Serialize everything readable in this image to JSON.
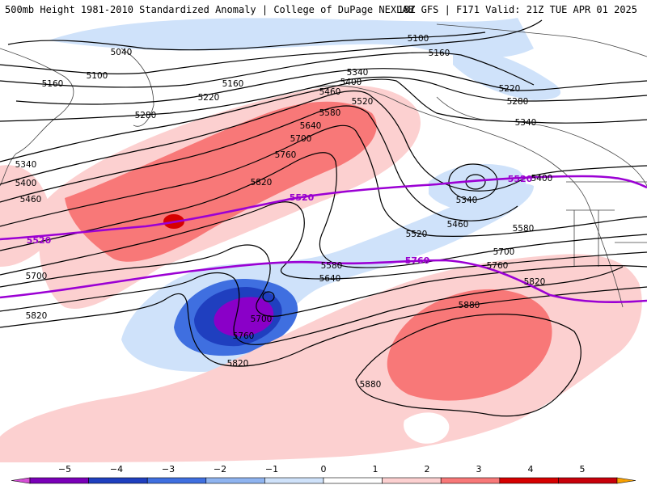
{
  "header": {
    "title_left": "500mb Height 1981-2010 Standardized Anomaly | College of DuPage NEXLAB",
    "title_right": "18Z GFS | F171 Valid: 21Z TUE APR 01 2025"
  },
  "colors": {
    "anom_neg5": "#8a00c8",
    "anom_neg4": "#1f3fbf",
    "anom_neg3": "#3f6fe0",
    "anom_neg2": "#8fb4f0",
    "anom_neg1": "#cfe2fa",
    "anom_pos1": "#fcd0d0",
    "anom_pos2": "#f87878",
    "anom_pos3": "#d60000",
    "contour": "#000000",
    "highlight_contour": "#9b00d4"
  },
  "contours": {
    "labels": [
      "5040",
      "5100",
      "5160",
      "5220",
      "5280",
      "5340",
      "5400",
      "5460",
      "5520",
      "5580",
      "5640",
      "5700",
      "5760",
      "5820",
      "5880"
    ],
    "label_5100_a": "5100",
    "label_5160_b": "5160"
  },
  "highlight_labels": {
    "west_5520": "5520",
    "mid_5520": "5520",
    "east_5520": "5520",
    "mid_5760": "5760"
  },
  "colorbar": {
    "ticks": [
      "−5",
      "−4",
      "−3",
      "−2",
      "−1",
      "0",
      "1",
      "2",
      "3",
      "4",
      "5"
    ],
    "segments": [
      "#d64fd6",
      "#7a00b8",
      "#1f3fbf",
      "#3f6fe0",
      "#8fb4f0",
      "#cfe2fa",
      "#ffffff",
      "#fcd0d0",
      "#f87878",
      "#d60000",
      "#c8000a",
      "#f9a100"
    ]
  }
}
